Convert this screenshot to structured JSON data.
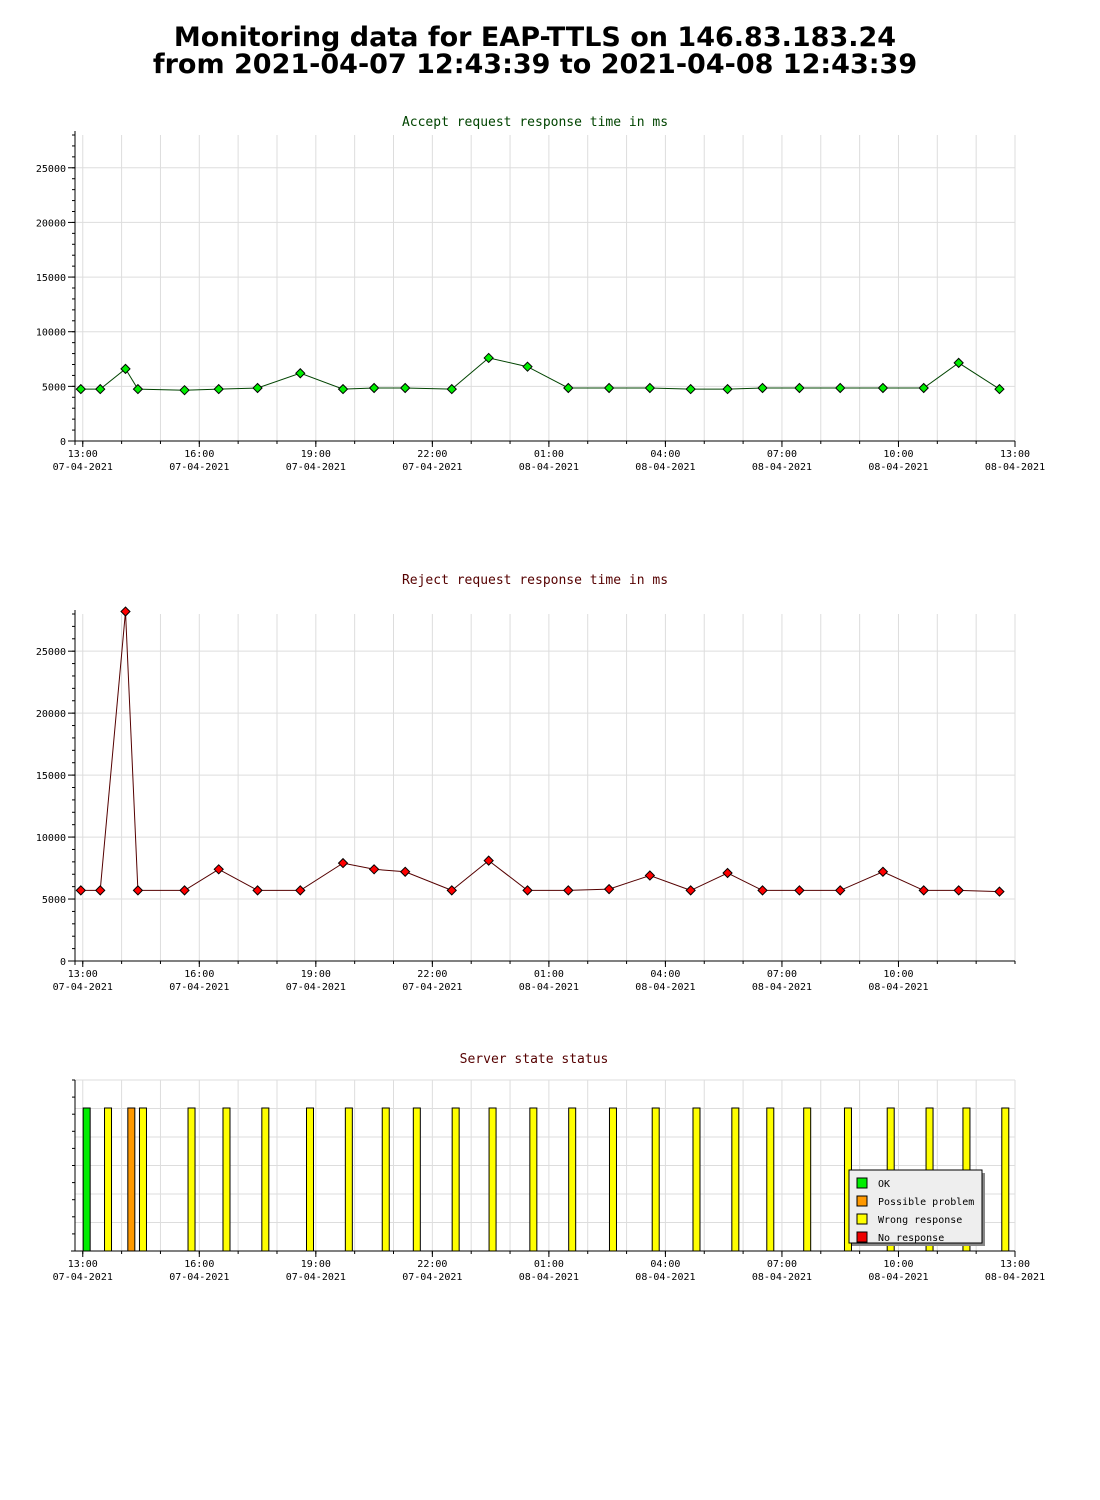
{
  "page": {
    "title_line1": "Monitoring data for EAP-TTLS on 146.83.183.24",
    "title_line2": "from 2021-04-07 12:43:39 to 2021-04-08 12:43:39"
  },
  "colors": {
    "accept_point": "#00ee00",
    "reject_point": "#ff0000",
    "accept_title": "#004400",
    "reject_title": "#550000",
    "status_title": "#550000",
    "ok": "#00ee00",
    "possible_problem": "#ff9900",
    "wrong_response": "#ffff00",
    "no_response": "#ee0000"
  },
  "chart_data": [
    {
      "id": "accept",
      "type": "line",
      "title": "Accept request response time in ms",
      "xlabel": "",
      "ylabel": "",
      "x_unit": "hours since 2021-04-07 13:00",
      "xlim": [
        -0.2,
        24.0
      ],
      "ylim": [
        0,
        28000
      ],
      "yticks": [
        0,
        5000,
        10000,
        15000,
        20000,
        25000
      ],
      "xticks": [
        {
          "x": 0,
          "time": "13:00",
          "date": "07-04-2021"
        },
        {
          "x": 3,
          "time": "16:00",
          "date": "07-04-2021"
        },
        {
          "x": 6,
          "time": "19:00",
          "date": "07-04-2021"
        },
        {
          "x": 9,
          "time": "22:00",
          "date": "07-04-2021"
        },
        {
          "x": 12,
          "time": "01:00",
          "date": "08-04-2021"
        },
        {
          "x": 15,
          "time": "04:00",
          "date": "08-04-2021"
        },
        {
          "x": 18,
          "time": "07:00",
          "date": "08-04-2021"
        },
        {
          "x": 21,
          "time": "10:00",
          "date": "08-04-2021"
        },
        {
          "x": 24,
          "time": "13:00",
          "date": "08-04-2021"
        }
      ],
      "grid": true,
      "series": [
        {
          "x": [
            -0.05,
            0.45,
            1.1,
            1.42,
            2.62,
            3.5,
            4.5,
            5.6,
            6.7,
            7.5,
            8.3,
            9.5,
            10.45,
            11.45,
            12.5,
            13.55,
            14.6,
            15.65,
            16.6,
            17.5,
            18.45,
            19.5,
            20.6,
            21.65,
            22.55,
            23.6
          ],
          "y": [
            4750,
            4750,
            6600,
            4750,
            4650,
            4750,
            4850,
            6200,
            4750,
            4850,
            4850,
            4750,
            7600,
            6800,
            4850,
            4850,
            4850,
            4750,
            4750,
            4850,
            4850,
            4850,
            4850,
            4850,
            7150,
            4750
          ]
        }
      ]
    },
    {
      "id": "reject",
      "type": "line",
      "title": "Reject request response time in ms",
      "xlabel": "",
      "ylabel": "",
      "x_unit": "hours since 2021-04-07 13:00",
      "xlim": [
        -0.2,
        24.0
      ],
      "ylim": [
        0,
        28000
      ],
      "yticks": [
        0,
        5000,
        10000,
        15000,
        20000,
        25000
      ],
      "xticks": [
        {
          "x": 0,
          "time": "13:00",
          "date": "07-04-2021"
        },
        {
          "x": 3,
          "time": "16:00",
          "date": "07-04-2021"
        },
        {
          "x": 6,
          "time": "19:00",
          "date": "07-04-2021"
        },
        {
          "x": 9,
          "time": "22:00",
          "date": "07-04-2021"
        },
        {
          "x": 12,
          "time": "01:00",
          "date": "08-04-2021"
        },
        {
          "x": 15,
          "time": "04:00",
          "date": "08-04-2021"
        },
        {
          "x": 18,
          "time": "07:00",
          "date": "08-04-2021"
        },
        {
          "x": 21,
          "time": "10:00",
          "date": "08-04-2021"
        }
      ],
      "grid": true,
      "series": [
        {
          "x": [
            -0.05,
            0.45,
            1.1,
            1.42,
            2.62,
            3.5,
            4.5,
            5.6,
            6.7,
            7.5,
            8.3,
            9.5,
            10.45,
            11.45,
            12.5,
            13.55,
            14.6,
            15.65,
            16.6,
            17.5,
            18.45,
            19.5,
            20.6,
            21.65,
            22.55,
            23.6
          ],
          "y": [
            5700,
            5700,
            28200,
            5700,
            5700,
            7400,
            5700,
            5700,
            7900,
            7400,
            7200,
            5700,
            8100,
            5700,
            5700,
            5800,
            6900,
            5700,
            7100,
            5700,
            5700,
            5700,
            7200,
            5700,
            5700,
            5600
          ]
        }
      ]
    },
    {
      "id": "status",
      "type": "bar",
      "title": "Server state status",
      "xlabel": "",
      "ylabel": "",
      "x_unit": "hours since 2021-04-07 13:00",
      "xlim": [
        -0.2,
        24.0
      ],
      "xticks": [
        {
          "x": 0,
          "time": "13:00",
          "date": "07-04-2021"
        },
        {
          "x": 3,
          "time": "16:00",
          "date": "07-04-2021"
        },
        {
          "x": 6,
          "time": "19:00",
          "date": "07-04-2021"
        },
        {
          "x": 9,
          "time": "22:00",
          "date": "07-04-2021"
        },
        {
          "x": 12,
          "time": "01:00",
          "date": "08-04-2021"
        },
        {
          "x": 15,
          "time": "04:00",
          "date": "08-04-2021"
        },
        {
          "x": 18,
          "time": "07:00",
          "date": "08-04-2021"
        },
        {
          "x": 21,
          "time": "10:00",
          "date": "08-04-2021"
        },
        {
          "x": 24,
          "time": "13:00",
          "date": "08-04-2021"
        }
      ],
      "legend": {
        "position": "bottom-right",
        "entries": [
          {
            "key": "ok",
            "label": "OK"
          },
          {
            "key": "possible_problem",
            "label": "Possible problem"
          },
          {
            "key": "wrong_response",
            "label": "Wrong response"
          },
          {
            "key": "no_response",
            "label": "No response"
          }
        ]
      },
      "bars": [
        {
          "x": 0.1,
          "state": "ok"
        },
        {
          "x": 0.65,
          "state": "wrong_response"
        },
        {
          "x": 1.25,
          "state": "possible_problem"
        },
        {
          "x": 1.55,
          "state": "wrong_response"
        },
        {
          "x": 2.8,
          "state": "wrong_response"
        },
        {
          "x": 3.7,
          "state": "wrong_response"
        },
        {
          "x": 4.7,
          "state": "wrong_response"
        },
        {
          "x": 5.85,
          "state": "wrong_response"
        },
        {
          "x": 6.85,
          "state": "wrong_response"
        },
        {
          "x": 7.8,
          "state": "wrong_response"
        },
        {
          "x": 8.6,
          "state": "wrong_response"
        },
        {
          "x": 9.6,
          "state": "wrong_response"
        },
        {
          "x": 10.55,
          "state": "wrong_response"
        },
        {
          "x": 11.6,
          "state": "wrong_response"
        },
        {
          "x": 12.6,
          "state": "wrong_response"
        },
        {
          "x": 13.65,
          "state": "wrong_response"
        },
        {
          "x": 14.75,
          "state": "wrong_response"
        },
        {
          "x": 15.8,
          "state": "wrong_response"
        },
        {
          "x": 16.8,
          "state": "wrong_response"
        },
        {
          "x": 17.7,
          "state": "wrong_response"
        },
        {
          "x": 18.65,
          "state": "wrong_response"
        },
        {
          "x": 19.7,
          "state": "wrong_response"
        },
        {
          "x": 20.8,
          "state": "wrong_response"
        },
        {
          "x": 21.8,
          "state": "wrong_response"
        },
        {
          "x": 22.75,
          "state": "wrong_response"
        },
        {
          "x": 23.75,
          "state": "wrong_response"
        }
      ]
    }
  ]
}
